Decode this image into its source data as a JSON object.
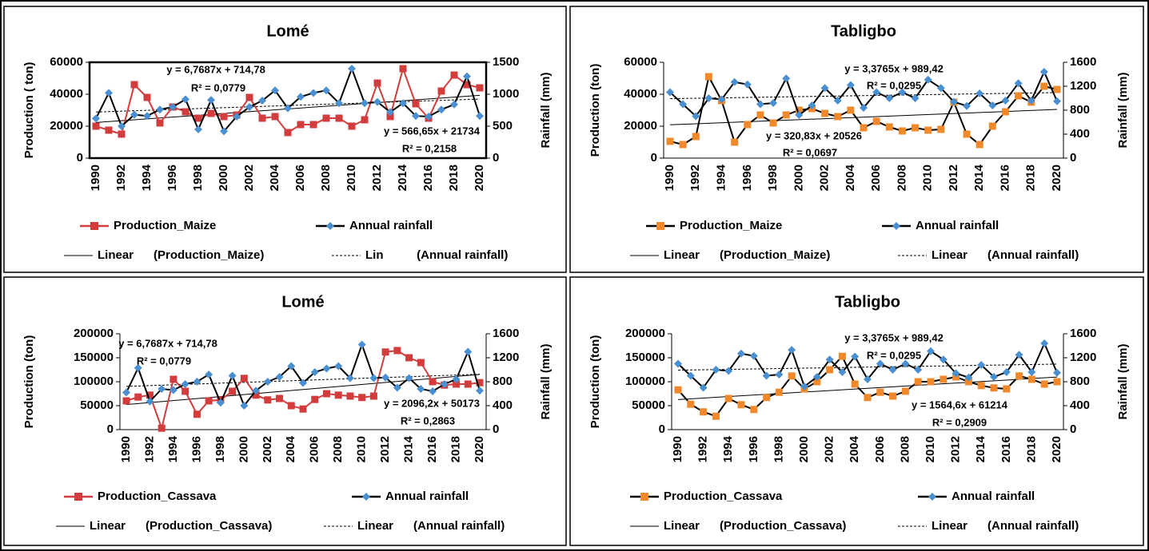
{
  "chart_data": [
    {
      "type": "line",
      "title": "Lomé",
      "y_label": "Production ( ton)",
      "y2_label": "Rainfall (mm)",
      "plot_border": true,
      "categories": [
        "1990",
        null,
        "1992",
        null,
        "1994",
        null,
        "1996",
        null,
        "1998",
        null,
        "2000",
        null,
        "2002",
        null,
        "2004",
        null,
        "2006",
        null,
        "2008",
        null,
        "2010",
        null,
        "2012",
        null,
        "2014",
        null,
        "2016",
        null,
        "2018",
        null,
        "2020"
      ],
      "ylim": [
        0,
        60000
      ],
      "yticks": [
        0,
        20000,
        40000,
        60000
      ],
      "y2lim": [
        0,
        1500
      ],
      "y2ticks": [
        0,
        500,
        1000,
        1500
      ],
      "series": [
        {
          "name": "Production_Maize",
          "color": "#d23c3c",
          "line_color": "#d23c3c",
          "marker": "square",
          "values": [
            20000,
            17500,
            15000,
            46000,
            38000,
            22000,
            32000,
            29000,
            25000,
            28000,
            26000,
            27000,
            38000,
            25000,
            26000,
            16000,
            21000,
            21000,
            25000,
            25000,
            20000,
            24000,
            47000,
            26000,
            56000,
            34000,
            25000,
            42000,
            52000,
            46000,
            44000
          ]
        },
        {
          "name": "Annual rainfall",
          "axis": "y2",
          "color": "#4a8fd0",
          "line_color": "#000000",
          "marker": "diamond",
          "values": [
            620,
            1020,
            500,
            680,
            660,
            760,
            800,
            920,
            450,
            910,
            420,
            650,
            800,
            900,
            1060,
            780,
            960,
            1020,
            1060,
            860,
            1400,
            860,
            880,
            720,
            860,
            660,
            650,
            760,
            840,
            1280,
            660
          ]
        }
      ],
      "trendlines": [
        {
          "name": "Linear      (Production_Maize)",
          "slope": 566.65,
          "intercept": 21734,
          "style": "solid",
          "equation": "y = 566,65x + 21734",
          "r2": "R² = 0,2158"
        },
        {
          "name": "Lin          (Annual rainfall)",
          "axis": "y2",
          "slope": 6.7687,
          "intercept": 714.78,
          "style": "dashed",
          "equation": "y = 6,7687x + 714,78",
          "r2": "R² = 0,0779"
        }
      ]
    },
    {
      "type": "line",
      "title": "Tabligbo",
      "y_label": "Production (ton)",
      "y2_label": "Rainfall (mm)",
      "plot_border": false,
      "categories": [
        "1990",
        null,
        "1992",
        null,
        "1994",
        null,
        "1996",
        null,
        "1998",
        null,
        "2000",
        null,
        "2002",
        null,
        "2004",
        null,
        "2006",
        null,
        "2008",
        null,
        "2010",
        null,
        "2012",
        null,
        "2014",
        null,
        "2016",
        null,
        "2018",
        null,
        "2020"
      ],
      "ylim": [
        0,
        60000
      ],
      "yticks": [
        0,
        20000,
        40000,
        60000
      ],
      "y2lim": [
        0,
        1600
      ],
      "y2ticks": [
        0,
        400,
        800,
        1200,
        1600
      ],
      "series": [
        {
          "name": "Production_Maize",
          "color": "#f0882c",
          "line_color": "#000000",
          "marker": "square",
          "values": [
            10500,
            8500,
            13500,
            51000,
            36000,
            10000,
            21000,
            27000,
            22000,
            27000,
            30000,
            31000,
            28000,
            26000,
            30000,
            19000,
            23000,
            19500,
            17000,
            19000,
            17500,
            18000,
            35000,
            15000,
            8500,
            20000,
            29000,
            39000,
            35000,
            45000,
            43000
          ]
        },
        {
          "name": "Annual rainfall",
          "axis": "y2",
          "color": "#4a8fd0",
          "line_color": "#000000",
          "marker": "diamond",
          "values": [
            1100,
            900,
            700,
            1000,
            980,
            1270,
            1230,
            900,
            920,
            1330,
            720,
            880,
            1170,
            960,
            1220,
            840,
            1100,
            1000,
            1100,
            1000,
            1310,
            1170,
            940,
            870,
            1080,
            880,
            960,
            1250,
            960,
            1440,
            950
          ]
        }
      ],
      "trendlines": [
        {
          "name": "Linear      (Production_Maize)",
          "slope": 320.83,
          "intercept": 20526,
          "style": "solid",
          "equation": "y = 320,83x + 20526",
          "r2": "R² = 0,0697"
        },
        {
          "name": "Linear      (Annual rainfall)",
          "axis": "y2",
          "slope": 3.3765,
          "intercept": 989.42,
          "style": "dashed",
          "equation": "y = 3,3765x + 989,42",
          "r2": "R² = 0,0295"
        }
      ]
    },
    {
      "type": "line",
      "title": "Lomé",
      "y_label": "Production (ton)",
      "y2_label": "Rainfall (mm)",
      "plot_border": false,
      "categories": [
        "1990",
        null,
        "1992",
        null,
        "1994",
        null,
        "1996",
        null,
        "1998",
        null,
        "2000",
        null,
        "2002",
        null,
        "2004",
        null,
        "2006",
        null,
        "2008",
        null,
        "2010",
        null,
        "2012",
        null,
        "2014",
        null,
        "2016",
        null,
        "2018",
        null,
        "2020"
      ],
      "ylim": [
        0,
        200000
      ],
      "yticks": [
        0,
        50000,
        100000,
        150000,
        200000
      ],
      "y2lim": [
        0,
        1600
      ],
      "y2ticks": [
        0,
        400,
        800,
        1200,
        1600
      ],
      "series": [
        {
          "name": "Production_Cassava",
          "color": "#d23c3c",
          "line_color": "#d23c3c",
          "marker": "square",
          "values": [
            60000,
            68000,
            72000,
            3000,
            105000,
            80000,
            32000,
            60000,
            62000,
            80000,
            107000,
            72000,
            62000,
            65000,
            50000,
            43000,
            63000,
            75000,
            72000,
            70000,
            67000,
            70000,
            162000,
            165000,
            150000,
            140000,
            100000,
            93000,
            95000,
            95000,
            98000
          ]
        },
        {
          "name": "Annual rainfall",
          "axis": "y2",
          "color": "#4a8fd0",
          "line_color": "#000000",
          "marker": "diamond",
          "values": [
            620,
            1030,
            470,
            680,
            660,
            760,
            800,
            920,
            450,
            900,
            400,
            650,
            800,
            880,
            1060,
            780,
            960,
            1020,
            1060,
            860,
            1420,
            860,
            870,
            700,
            860,
            680,
            640,
            760,
            840,
            1300,
            650
          ]
        }
      ],
      "trendlines": [
        {
          "name": "Linear      (Production_Cassava)",
          "slope": 2096.2,
          "intercept": 50173,
          "style": "solid",
          "equation": "y = 2096,2x + 50173",
          "r2": "R² = 0,2863"
        },
        {
          "name": "Linear      (Annual rainfall)",
          "axis": "y2",
          "slope": 6.7687,
          "intercept": 714.78,
          "style": "dashed",
          "equation": "y = 6,7687x + 714,78",
          "r2": "R² = 0,0779"
        }
      ]
    },
    {
      "type": "line",
      "title": "Tabligbo",
      "y_label": "Production (ton)",
      "y2_label": "Rainfall (mm)",
      "plot_border": false,
      "categories": [
        "1990",
        null,
        "1992",
        null,
        "1994",
        null,
        "1996",
        null,
        "1998",
        null,
        "2000",
        null,
        "2002",
        null,
        "2004",
        null,
        "2006",
        null,
        "2008",
        null,
        "2010",
        null,
        "2012",
        null,
        "2014",
        null,
        "2016",
        null,
        "2018",
        null,
        "2020"
      ],
      "ylim": [
        0,
        200000
      ],
      "yticks": [
        0,
        50000,
        100000,
        150000,
        200000
      ],
      "y2lim": [
        0,
        1600
      ],
      "y2ticks": [
        0,
        400,
        800,
        1200,
        1600
      ],
      "series": [
        {
          "name": "Production_Cassava",
          "color": "#f0882c",
          "line_color": "#000000",
          "marker": "square",
          "values": [
            83000,
            53000,
            37000,
            28000,
            65000,
            52000,
            42000,
            67000,
            78000,
            112000,
            85000,
            100000,
            125000,
            153000,
            95000,
            67000,
            78000,
            70000,
            80000,
            100000,
            100000,
            105000,
            110000,
            100000,
            92000,
            87000,
            85000,
            112000,
            105000,
            95000,
            100000
          ]
        },
        {
          "name": "Annual rainfall",
          "axis": "y2",
          "color": "#4a8fd0",
          "line_color": "#000000",
          "marker": "diamond",
          "values": [
            1100,
            900,
            700,
            1000,
            980,
            1270,
            1230,
            900,
            920,
            1330,
            720,
            880,
            1170,
            960,
            1220,
            840,
            1100,
            1000,
            1100,
            1000,
            1310,
            1170,
            940,
            870,
            1080,
            880,
            960,
            1250,
            960,
            1440,
            950
          ]
        }
      ],
      "trendlines": [
        {
          "name": "Linear      (Production_Cassava)",
          "slope": 1564.6,
          "intercept": 61214,
          "style": "solid",
          "equation": "y = 1564,6x + 61214",
          "r2": "R² = 0,2909"
        },
        {
          "name": "Linear      (Annual rainfall)",
          "axis": "y2",
          "slope": 3.3765,
          "intercept": 989.42,
          "style": "dashed",
          "equation": "y = 3,3765x + 989,42",
          "r2": "R² = 0,0295"
        }
      ]
    }
  ]
}
